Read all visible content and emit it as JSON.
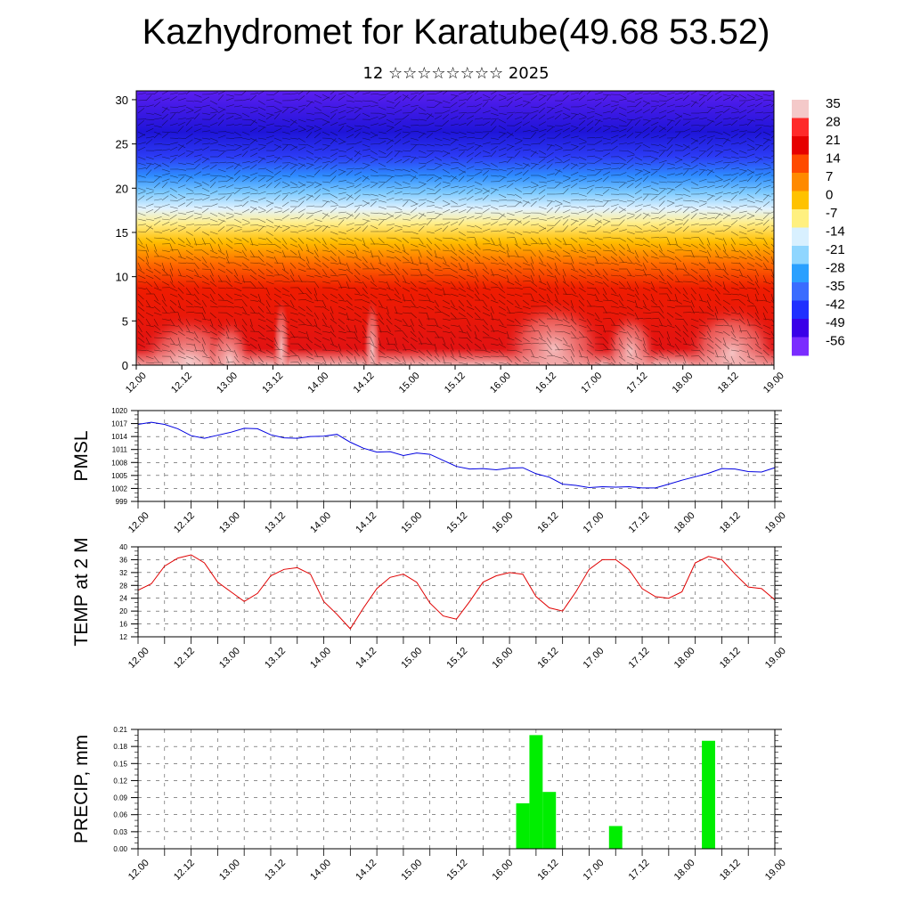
{
  "header": {
    "title": "Kazhydromet for Karatube(49.68 53.52)",
    "subtitle": "12 ☆☆☆☆☆☆☆☆ 2025"
  },
  "time_labels": [
    "12.00",
    "12.12",
    "13.00",
    "13.12",
    "14.00",
    "14.12",
    "15.00",
    "15.12",
    "16.00",
    "16.12",
    "17.00",
    "17.12",
    "18.00",
    "18.12",
    "19.00"
  ],
  "chart_data": [
    {
      "type": "heatmap",
      "name": "vertical-temperature-wind",
      "x_ticks": [
        "12.00",
        "12.12",
        "13.00",
        "13.12",
        "14.00",
        "14.12",
        "15.00",
        "15.12",
        "16.00",
        "16.12",
        "17.00",
        "17.12",
        "18.00",
        "18.12",
        "19.00"
      ],
      "y_ticks": [
        "0",
        "5",
        "10",
        "15",
        "20",
        "25",
        "30"
      ],
      "ylim": [
        0,
        31
      ],
      "colorbar": {
        "labels": [
          "35",
          "28",
          "21",
          "14",
          "7",
          "0",
          "-7",
          "-14",
          "-21",
          "-28",
          "-35",
          "-42",
          "-49",
          "-56"
        ],
        "colors": [
          "#f4c9c9",
          "#ff2a2a",
          "#e60000",
          "#ff4a00",
          "#ff8a00",
          "#ffc200",
          "#fff080",
          "#d8f0ff",
          "#8fd6ff",
          "#2aa0ff",
          "#3a6cff",
          "#2030ff",
          "#3a00e8",
          "#7b2cff"
        ]
      }
    },
    {
      "type": "line",
      "name": "PMSL",
      "ylabel": "PMSL",
      "ylim": [
        999,
        1020
      ],
      "y_ticks": [
        "1020",
        "1017",
        "1014",
        "1011",
        "1008",
        "1005",
        "1002",
        "999"
      ],
      "color": "#0000e0",
      "x": [
        0,
        3,
        6,
        9,
        12,
        15,
        18,
        21,
        24,
        27,
        30,
        33,
        36,
        39,
        42,
        45,
        48,
        51,
        54,
        57,
        60,
        63,
        66,
        69,
        72,
        75,
        78,
        81,
        84,
        87,
        90,
        93,
        96,
        99,
        102,
        105,
        108,
        111,
        114,
        117,
        120,
        123,
        126,
        129,
        132,
        135,
        138,
        141,
        144
      ],
      "values": [
        1016.8,
        1017.3,
        1016.8,
        1015.8,
        1014.2,
        1013.6,
        1014.3,
        1015.0,
        1015.9,
        1015.8,
        1014.4,
        1013.7,
        1013.6,
        1014.0,
        1014.1,
        1014.5,
        1012.7,
        1011.3,
        1010.4,
        1010.5,
        1009.6,
        1010.2,
        1009.9,
        1008.5,
        1007.1,
        1006.5,
        1006.6,
        1006.3,
        1006.7,
        1006.8,
        1005.4,
        1004.6,
        1003.0,
        1002.7,
        1002.2,
        1002.4,
        1002.3,
        1002.4,
        1002.1,
        1002.1,
        1003.0,
        1003.9,
        1004.7,
        1005.5,
        1006.6,
        1006.5,
        1005.9,
        1005.8,
        1006.8
      ]
    },
    {
      "type": "line",
      "name": "TEMP at 2 M",
      "ylabel": "TEMP at 2 M",
      "ylim": [
        12,
        40
      ],
      "y_ticks": [
        "40",
        "36",
        "32",
        "28",
        "24",
        "20",
        "16",
        "12"
      ],
      "color": "#e00000",
      "x": [
        0,
        3,
        6,
        9,
        12,
        15,
        18,
        21,
        24,
        27,
        30,
        33,
        36,
        39,
        42,
        45,
        48,
        51,
        54,
        57,
        60,
        63,
        66,
        69,
        72,
        75,
        78,
        81,
        84,
        87,
        90,
        93,
        96,
        99,
        102,
        105,
        108,
        111,
        114,
        117,
        120,
        123,
        126,
        129,
        132,
        135,
        138,
        141,
        144
      ],
      "values": [
        26.5,
        28.5,
        34.0,
        36.5,
        37.5,
        35.0,
        29.0,
        26.0,
        23.0,
        25.5,
        31.0,
        33.0,
        33.5,
        31.5,
        23.0,
        19.0,
        14.5,
        21.0,
        27.0,
        30.5,
        31.5,
        29.0,
        22.5,
        18.5,
        17.5,
        23.0,
        29.0,
        31.0,
        32.0,
        31.5,
        24.5,
        21.0,
        20.0,
        26.0,
        33.0,
        36.0,
        36.0,
        33.0,
        27.0,
        24.5,
        24.0,
        26.0,
        35.0,
        37.0,
        36.0,
        31.5,
        27.5,
        27.0,
        23.5
      ]
    },
    {
      "type": "bar",
      "name": "PRECIP",
      "ylabel": "PRECIP, mm",
      "ylim": [
        0,
        0.21
      ],
      "y_ticks": [
        "0.21",
        "0.18",
        "0.15",
        "0.12",
        "0.09",
        "0.06",
        "0.03",
        "0.00"
      ],
      "color": "#00ee00",
      "bar_width_hours": 3,
      "x": [
        87,
        90,
        93,
        108,
        129
      ],
      "values": [
        0.08,
        0.2,
        0.1,
        0.04,
        0.19
      ]
    }
  ]
}
